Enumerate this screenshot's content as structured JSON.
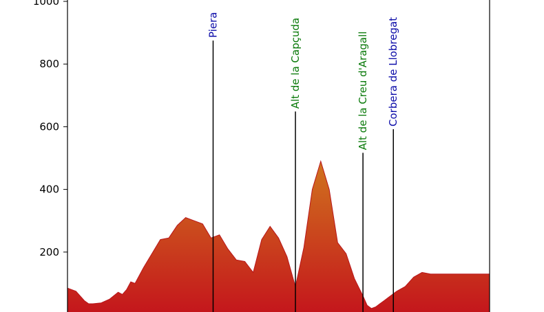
{
  "chart_data": {
    "type": "area",
    "title": "",
    "xlabel": "",
    "ylabel": "",
    "ylim": [
      0,
      1000
    ],
    "y_ticks": [
      200,
      400,
      600,
      800,
      1000
    ],
    "grid": false,
    "fill_colors": {
      "bottom": "#c4151c",
      "top": "#d0731e"
    },
    "profile": {
      "x": [
        0,
        2,
        4,
        5,
        6,
        8,
        10,
        12,
        13,
        14,
        15,
        16,
        18,
        20,
        22,
        24,
        26,
        28,
        30,
        32,
        34,
        36,
        38,
        40,
        42,
        44,
        46,
        48,
        50,
        52,
        54,
        56,
        58,
        60,
        62,
        64,
        66,
        68,
        70,
        71,
        72,
        73,
        74,
        75,
        76,
        78,
        80,
        82,
        84,
        86,
        88,
        90,
        92,
        94,
        96,
        98,
        100
      ],
      "y": [
        85,
        75,
        45,
        35,
        35,
        38,
        50,
        72,
        65,
        80,
        105,
        100,
        150,
        195,
        240,
        245,
        285,
        310,
        300,
        290,
        245,
        255,
        210,
        175,
        170,
        135,
        240,
        282,
        245,
        185,
        90,
        215,
        400,
        490,
        400,
        230,
        195,
        115,
        60,
        30,
        20,
        25,
        35,
        45,
        55,
        75,
        90,
        120,
        135,
        130,
        130,
        130,
        130,
        130,
        130,
        130,
        130
      ]
    },
    "x_max": 100,
    "markers": [
      {
        "x": 34.5,
        "label": "Piera",
        "color": "#0a0aa8"
      },
      {
        "x": 54,
        "label": "Alt de la Capçuda",
        "color": "#0a7a0a"
      },
      {
        "x": 70,
        "label": "Alt de la Creu d'Aragall",
        "color": "#0a7a0a"
      },
      {
        "x": 77.2,
        "label": "Corbera de Llobregat",
        "color": "#0a0aa8"
      }
    ]
  }
}
